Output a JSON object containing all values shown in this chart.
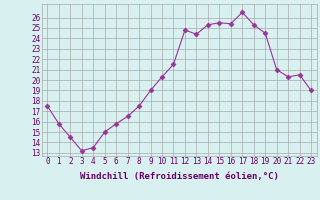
{
  "x": [
    0,
    1,
    2,
    3,
    4,
    5,
    6,
    7,
    8,
    9,
    10,
    11,
    12,
    13,
    14,
    15,
    16,
    17,
    18,
    19,
    20,
    21,
    22,
    23
  ],
  "y": [
    17.5,
    15.8,
    14.5,
    13.2,
    13.5,
    15.0,
    15.8,
    16.5,
    17.5,
    19.0,
    20.3,
    21.5,
    24.8,
    24.4,
    25.3,
    25.5,
    25.4,
    26.5,
    25.3,
    24.5,
    21.0,
    20.3,
    20.5,
    19.0
  ],
  "line_color": "#993399",
  "marker": "D",
  "marker_size": 2.5,
  "bg_color": "#d9f0f0",
  "grid_color": "#aaaaaa",
  "xlabel": "Windchill (Refroidissement éolien,°C)",
  "ylim": [
    13,
    27
  ],
  "xlim": [
    -0.5,
    23.5
  ],
  "yticks": [
    13,
    14,
    15,
    16,
    17,
    18,
    19,
    20,
    21,
    22,
    23,
    24,
    25,
    26
  ],
  "xticks": [
    0,
    1,
    2,
    3,
    4,
    5,
    6,
    7,
    8,
    9,
    10,
    11,
    12,
    13,
    14,
    15,
    16,
    17,
    18,
    19,
    20,
    21,
    22,
    23
  ],
  "tick_fontsize": 5.5,
  "xlabel_fontsize": 6.5,
  "axis_text_color": "#660066"
}
